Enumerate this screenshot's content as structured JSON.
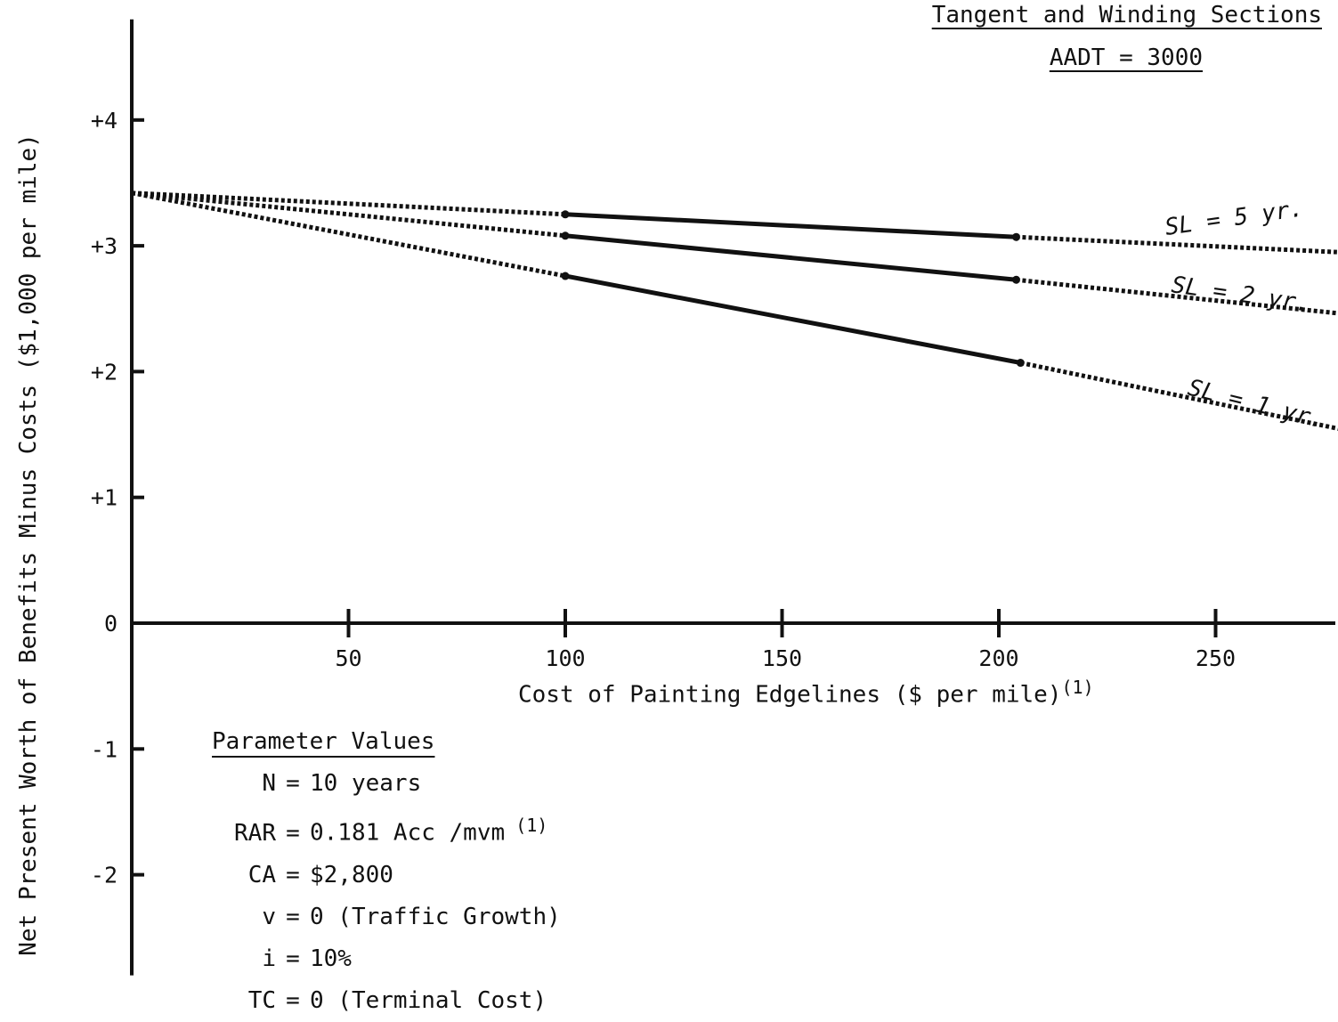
{
  "header": {
    "line1": "Tangent and Winding Sections",
    "line2": "AADT = 3000"
  },
  "parameters": {
    "title": "Parameter Values",
    "rows": [
      {
        "name": "N",
        "value": "10 years",
        "sup": ""
      },
      {
        "name": "RAR",
        "value": "0.181 Acc /mvm",
        "sup": "(1)"
      },
      {
        "name": "CA",
        "value": "$2,800",
        "sup": ""
      },
      {
        "name": "v",
        "value": "0 (Traffic Growth)",
        "sup": ""
      },
      {
        "name": "i",
        "value": "10%",
        "sup": ""
      },
      {
        "name": "TC",
        "value": "0 (Terminal Cost)",
        "sup": ""
      }
    ]
  },
  "chart_data": {
    "type": "line",
    "title": "Tangent and Winding Sections",
    "subtitle": "AADT = 3000",
    "xlabel": "Cost of Painting Edgelines ($ per mile)",
    "xlabel_sup": "(1)",
    "ylabel": "Net Present Worth of Benefits Minus Costs ($1,000 per mile)",
    "xlim": [
      0,
      280
    ],
    "ylim": [
      -2.8,
      4.8
    ],
    "x_ticks": [
      50,
      100,
      150,
      200,
      250
    ],
    "x_tick_labels": [
      "50",
      "100",
      "150",
      "200",
      "250"
    ],
    "y_ticks": [
      4,
      3,
      2,
      1,
      0,
      -1,
      -2
    ],
    "y_tick_labels": [
      "+4",
      "+3",
      "+2",
      "+1",
      "0",
      "-1",
      "-2"
    ],
    "grid": false,
    "series": [
      {
        "name": "SL = 5 yr.",
        "dotted_left": [
          [
            0,
            3.42
          ],
          [
            100,
            3.25
          ]
        ],
        "solid": [
          [
            100,
            3.25
          ],
          [
            204,
            3.07
          ]
        ],
        "dotted_right": [
          [
            204,
            3.07
          ],
          [
            278,
            2.95
          ]
        ]
      },
      {
        "name": "SL = 2 yr.",
        "dotted_left": [
          [
            0,
            3.42
          ],
          [
            100,
            3.08
          ]
        ],
        "solid": [
          [
            100,
            3.08
          ],
          [
            204,
            2.73
          ]
        ],
        "dotted_right": [
          [
            204,
            2.73
          ],
          [
            282,
            2.45
          ]
        ]
      },
      {
        "name": "SL = 1 yr.",
        "dotted_left": [
          [
            0,
            3.42
          ],
          [
            100,
            2.76
          ]
        ],
        "solid": [
          [
            100,
            2.76
          ],
          [
            205,
            2.07
          ]
        ],
        "dotted_right": [
          [
            205,
            2.07
          ],
          [
            282,
            1.52
          ]
        ]
      }
    ]
  }
}
